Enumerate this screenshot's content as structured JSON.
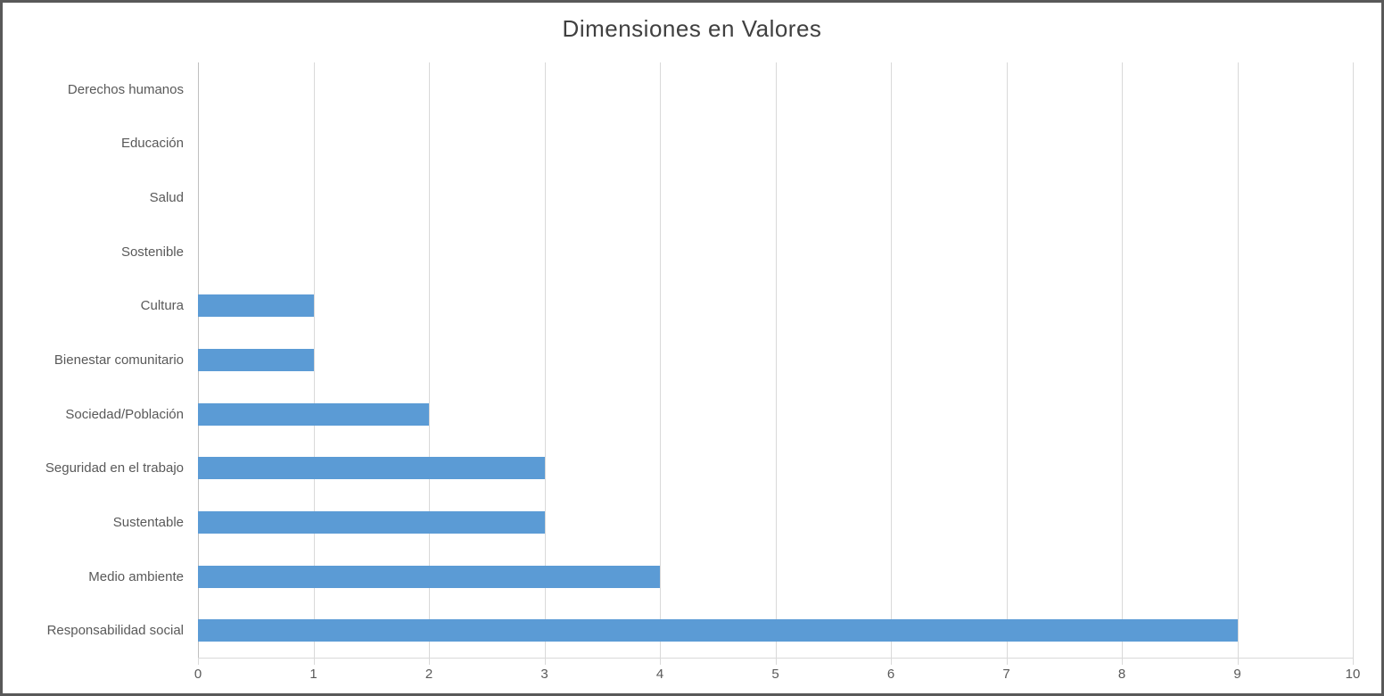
{
  "chart_data": {
    "type": "bar",
    "orientation": "horizontal",
    "title": "Dimensiones en Valores",
    "categories": [
      "Derechos humanos",
      "Educación",
      "Salud",
      "Sostenible",
      "Cultura",
      "Bienestar comunitario",
      "Sociedad/Población",
      "Seguridad en el trabajo",
      "Sustentable",
      "Medio ambiente",
      "Responsabilidad social"
    ],
    "values": [
      0,
      0,
      0,
      0,
      1,
      1,
      2,
      3,
      3,
      4,
      9
    ],
    "xlabel": "",
    "ylabel": "",
    "xlim": [
      0,
      10
    ],
    "xticks": [
      0,
      1,
      2,
      3,
      4,
      5,
      6,
      7,
      8,
      9,
      10
    ],
    "grid": "vertical-only",
    "legend": "none",
    "colors": {
      "bar": "#5b9bd5",
      "title_text": "#404040",
      "axis_text": "#595959",
      "gridline": "#d9d9d9",
      "frame_border": "#595959"
    }
  }
}
